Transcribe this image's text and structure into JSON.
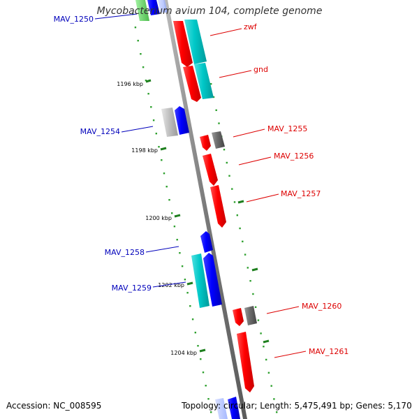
{
  "title": "Mycobacterium avium 104, complete genome",
  "footer": {
    "accession_label": "Accession:",
    "accession": "NC_008595",
    "topology_label": "Topology:",
    "topology": "circular;",
    "length_label": "Length:",
    "length": "5,475,491 bp;",
    "genes_label": "Genes:",
    "genes": "5,170"
  },
  "colors": {
    "forward_strand": "#ff0000",
    "reverse_strand": "#0000ff",
    "cyan_feature": "#00bfbf",
    "gray_feature": "#666666",
    "light_gray_feature": "#bbbbbb",
    "green_feature": "#33cc33",
    "backbone": "#888888",
    "tick": "#1e7f1e",
    "dots": "#2ea02e",
    "forward_label": "#dd0000",
    "reverse_label": "#0000bb"
  },
  "ticks": [
    {
      "label": "1196 kbp"
    },
    {
      "label": "1198 kbp"
    },
    {
      "label": "1200 kbp"
    },
    {
      "label": "1202 kbp"
    },
    {
      "label": "1204 kbp"
    }
  ],
  "genes": [
    {
      "label": "MAV_1250",
      "strand": "reverse"
    },
    {
      "label": "zwf",
      "strand": "forward"
    },
    {
      "label": "gnd",
      "strand": "forward"
    },
    {
      "label": "MAV_1254",
      "strand": "reverse"
    },
    {
      "label": "MAV_1255",
      "strand": "forward"
    },
    {
      "label": "MAV_1256",
      "strand": "forward"
    },
    {
      "label": "MAV_1257",
      "strand": "forward"
    },
    {
      "label": "MAV_1258",
      "strand": "reverse"
    },
    {
      "label": "MAV_1259",
      "strand": "reverse"
    },
    {
      "label": "MAV_1260",
      "strand": "forward"
    },
    {
      "label": "MAV_1261",
      "strand": "forward"
    }
  ]
}
